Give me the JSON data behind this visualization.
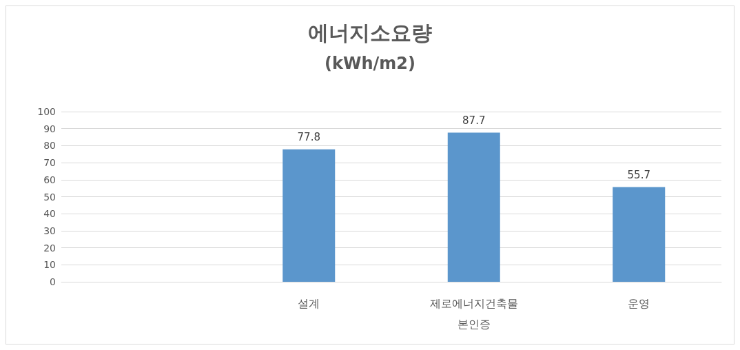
{
  "chart_data": {
    "type": "bar",
    "title": "에너지소요량",
    "subtitle": "(kWh/m2)",
    "categories": [
      null,
      "설계",
      "제로에너지건축물 본인증",
      "운영"
    ],
    "values": [
      null,
      77.8,
      87.7,
      55.7
    ],
    "color": "#5b96cc",
    "ylim": [
      0,
      100
    ],
    "yticks": [
      0,
      10,
      20,
      30,
      40,
      50,
      60,
      70,
      80,
      90,
      100
    ],
    "grid": "y",
    "data_labels": true
  }
}
